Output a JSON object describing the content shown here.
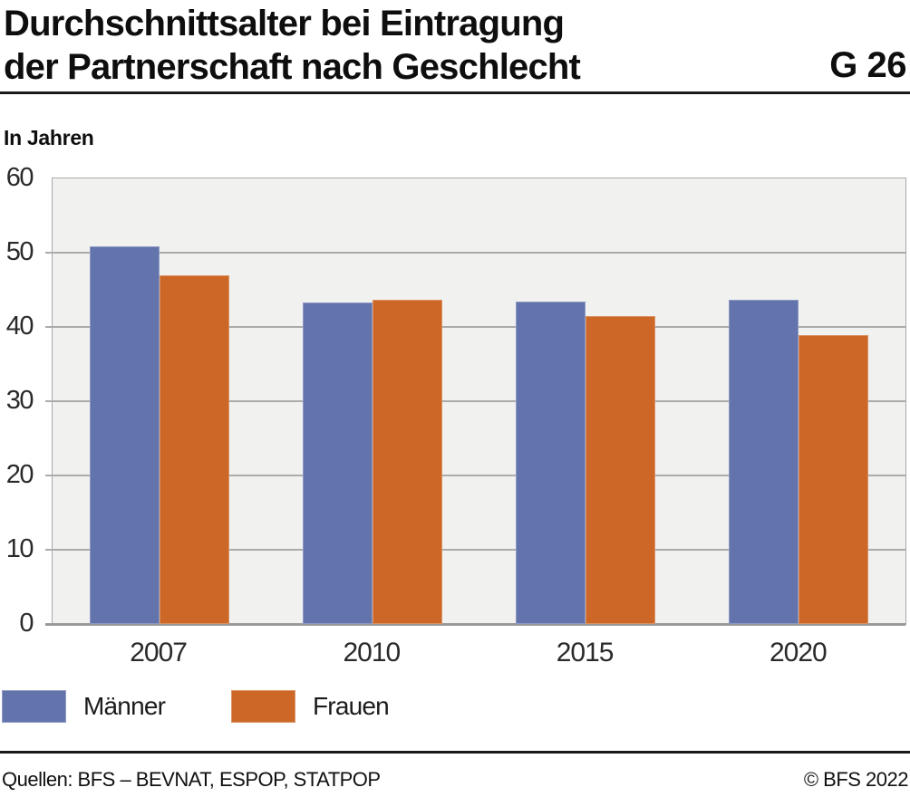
{
  "header": {
    "title_line1": "Durchschnittsalter bei Eintragung",
    "title_line2": "der Partnerschaft nach Geschlecht",
    "graphic_id": "G 26"
  },
  "subtitle": "In Jahren",
  "chart_data": {
    "type": "bar",
    "title": "Durchschnittsalter bei Eintragung der Partnerschaft nach Geschlecht",
    "unit_label": "In Jahren",
    "categories": [
      "2007",
      "2010",
      "2015",
      "2020"
    ],
    "series": [
      {
        "name": "Männer",
        "color": "#6373AC",
        "values": [
          50.8,
          43.3,
          43.4,
          43.6
        ]
      },
      {
        "name": "Frauen",
        "color": "#CC6727",
        "values": [
          47.0,
          43.6,
          41.5,
          38.9
        ]
      }
    ],
    "ylim": [
      0,
      60
    ],
    "ytick_step": 10,
    "grid": true,
    "legend_position": "bottom",
    "plot_background": "#F1F1F0",
    "gridline_color": "#ABABAB",
    "axis_line_color": "#9A9A9A"
  },
  "legend": {
    "items": [
      {
        "label": "Männer",
        "color": "#6373AC"
      },
      {
        "label": "Frauen",
        "color": "#CC6727"
      }
    ]
  },
  "footer": {
    "sources": "Quellen: BFS – BEVNAT, ESPOP, STATPOP",
    "copyright": "© BFS 2022"
  }
}
